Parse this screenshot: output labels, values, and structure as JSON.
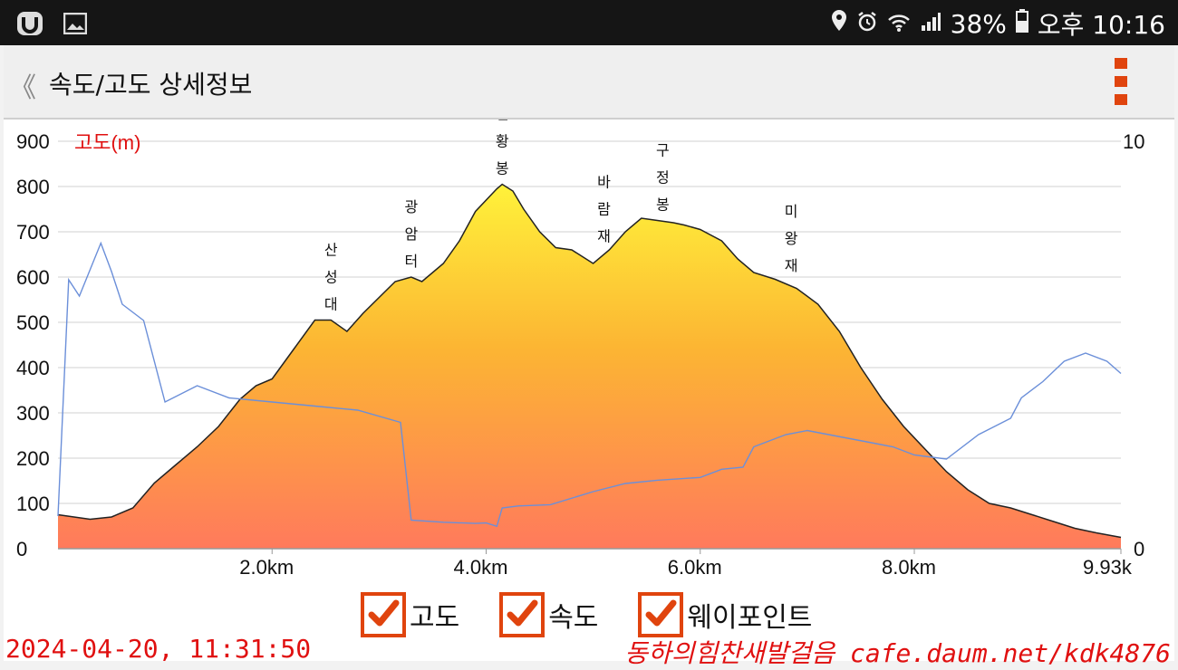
{
  "status_bar": {
    "battery": "38%",
    "time": "오후 10:16",
    "left_icons": [
      "logo-app-icon",
      "gallery-icon"
    ],
    "right_icons": [
      "location-icon",
      "alarm-icon",
      "wifi-icon",
      "signal-icon",
      "battery-icon"
    ]
  },
  "app_bar": {
    "back_label": "《",
    "title": "속도/고도 상세정보",
    "menu_icon": "more-vertical-icon"
  },
  "chart_data": {
    "type": "area",
    "y_label": "고도(m)",
    "y_ticks": [
      "900",
      "800",
      "700",
      "600",
      "500",
      "400",
      "300",
      "200",
      "100",
      "0"
    ],
    "y_lim": [
      0,
      900
    ],
    "y2_ticks": [
      "10",
      "0"
    ],
    "y2_lim": [
      0,
      10
    ],
    "x_ticks": [
      "2.0km",
      "4.0km",
      "6.0km",
      "8.0km",
      "9.93k"
    ],
    "x_lim": [
      0,
      9.93
    ],
    "grid": true,
    "colors": {
      "altitude_top": "#fff23a",
      "altitude_mid": "#fca932",
      "altitude_bottom": "#ff7a5c",
      "speed_line": "#6b8fd9",
      "label_red": "#e01010"
    },
    "series": [
      {
        "name": "고도",
        "unit": "m",
        "x": [
          0,
          0.3,
          0.5,
          0.7,
          0.9,
          1.1,
          1.3,
          1.5,
          1.7,
          1.85,
          2.0,
          2.2,
          2.4,
          2.55,
          2.7,
          2.85,
          3.0,
          3.15,
          3.3,
          3.4,
          3.6,
          3.75,
          3.9,
          4.1,
          4.15,
          4.25,
          4.35,
          4.5,
          4.65,
          4.8,
          5.0,
          5.15,
          5.3,
          5.45,
          5.6,
          5.75,
          5.85,
          6.0,
          6.2,
          6.35,
          6.5,
          6.7,
          6.9,
          7.1,
          7.3,
          7.5,
          7.7,
          7.9,
          8.1,
          8.3,
          8.5,
          8.7,
          8.9,
          9.1,
          9.3,
          9.5,
          9.7,
          9.93
        ],
        "y": [
          75,
          65,
          70,
          90,
          145,
          185,
          225,
          270,
          330,
          360,
          375,
          440,
          505,
          505,
          480,
          520,
          555,
          590,
          600,
          590,
          630,
          680,
          745,
          795,
          805,
          790,
          750,
          700,
          665,
          660,
          630,
          660,
          700,
          730,
          725,
          720,
          715,
          705,
          680,
          640,
          610,
          595,
          575,
          540,
          480,
          400,
          330,
          270,
          220,
          170,
          130,
          100,
          90,
          75,
          60,
          45,
          35,
          25
        ]
      },
      {
        "name": "속도",
        "unit": "",
        "x": [
          0,
          0.1,
          0.2,
          0.4,
          0.5,
          0.6,
          0.8,
          1.0,
          1.3,
          1.6,
          2.0,
          2.4,
          2.8,
          3.2,
          3.3,
          3.6,
          3.9,
          4.0,
          4.1,
          4.15,
          4.3,
          4.6,
          5.0,
          5.3,
          5.6,
          6.0,
          6.2,
          6.4,
          6.5,
          6.6,
          6.8,
          7.0,
          7.2,
          7.4,
          7.6,
          7.8,
          8.0,
          8.3,
          8.6,
          8.9,
          9.0,
          9.2,
          9.4,
          9.6,
          9.8,
          9.93
        ],
        "y": [
          0.8,
          6.6,
          6.2,
          7.5,
          6.8,
          6.0,
          5.6,
          3.6,
          4.0,
          3.7,
          3.6,
          3.5,
          3.4,
          3.1,
          0.7,
          0.65,
          0.62,
          0.63,
          0.55,
          1.0,
          1.05,
          1.08,
          1.4,
          1.6,
          1.68,
          1.75,
          1.95,
          2.0,
          2.5,
          2.6,
          2.8,
          2.9,
          2.8,
          2.7,
          2.6,
          2.5,
          2.3,
          2.2,
          2.8,
          3.2,
          3.7,
          4.1,
          4.6,
          4.8,
          4.6,
          4.3
        ]
      }
    ],
    "waypoints": [
      {
        "name": "산성대",
        "x": 2.55,
        "y": 505
      },
      {
        "name": "광암터",
        "x": 3.3,
        "y": 600
      },
      {
        "name": "천황봉",
        "x": 4.15,
        "y": 805
      },
      {
        "name": "바람재",
        "x": 5.1,
        "y": 655
      },
      {
        "name": "구정봉",
        "x": 5.65,
        "y": 725
      },
      {
        "name": "미왕재",
        "x": 6.85,
        "y": 590
      }
    ]
  },
  "legend": [
    {
      "label": "고도",
      "checked": true
    },
    {
      "label": "속도",
      "checked": true
    },
    {
      "label": "웨이포인트",
      "checked": true
    }
  ],
  "overlay": {
    "timestamp": "2024-04-20, 11:31:50",
    "watermark": "동하의힘찬새발걸음 cafe.daum.net/kdk4876"
  }
}
